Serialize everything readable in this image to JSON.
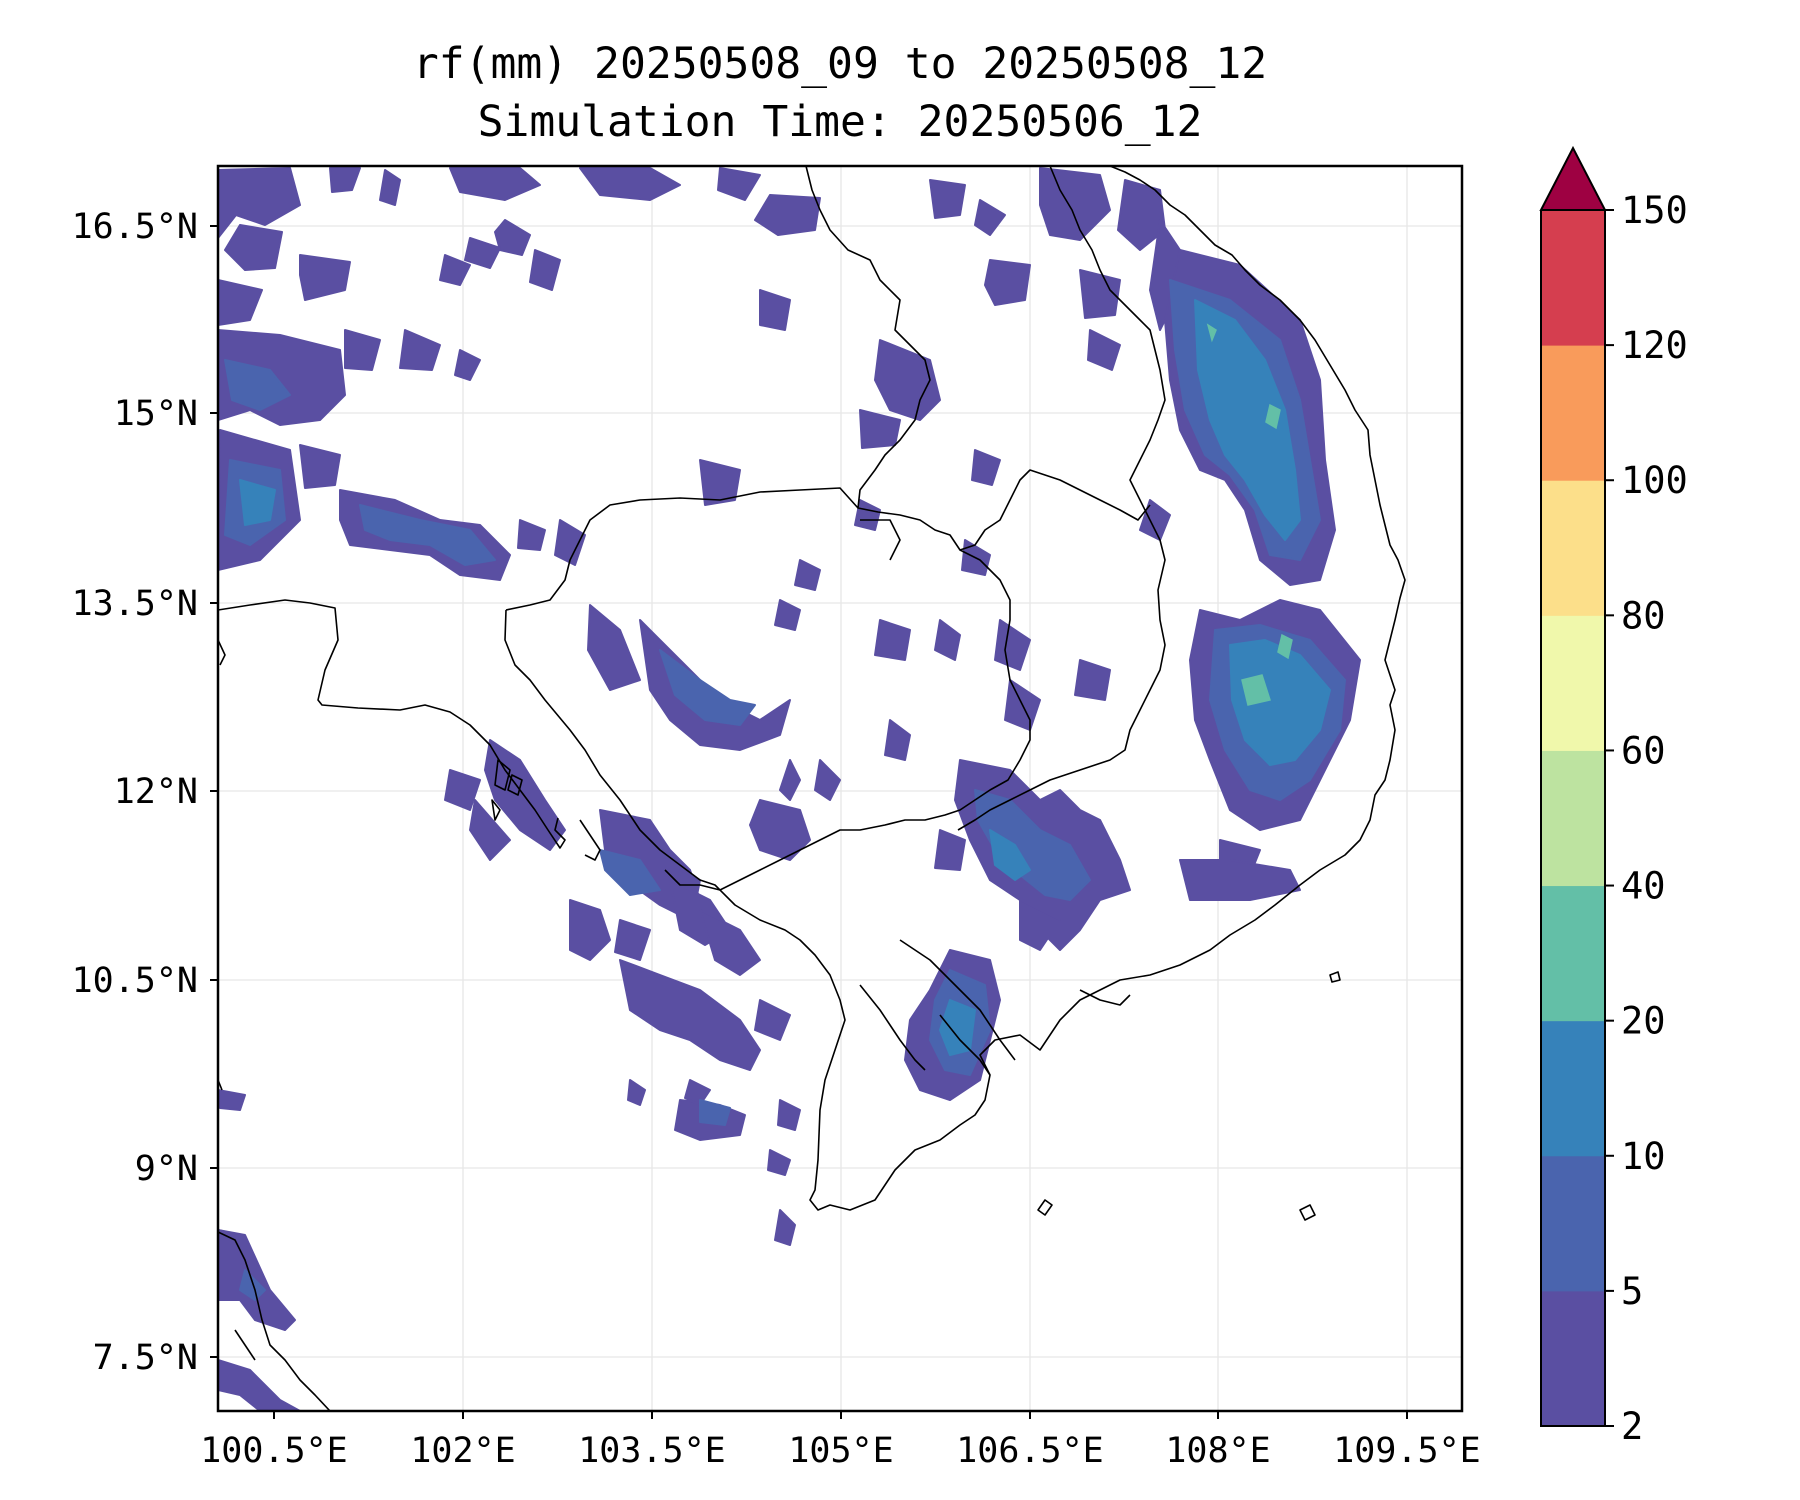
{
  "map": {
    "title_line1": "rf(mm) 20250508_09 to 20250508_12",
    "title_line2": "Simulation Time: 20250506_12",
    "x_ticks": [
      "100.5°E",
      "102°E",
      "103.5°E",
      "105°E",
      "106.5°E",
      "108°E",
      "109.5°E"
    ],
    "y_ticks": [
      "16.5°N",
      "15°N",
      "13.5°N",
      "12°N",
      "10.5°N",
      "9°N",
      "7.5°N"
    ],
    "extent": {
      "lon_min": 100.5,
      "lon_max": 109.85,
      "lat_min": 7.0,
      "lat_max": 16.95
    },
    "grid": true
  },
  "colorbar": {
    "levels": [
      "2",
      "5",
      "10",
      "20",
      "40",
      "60",
      "80",
      "100",
      "120",
      "150"
    ],
    "colors": [
      "#5a4fa2",
      "#4a64ae",
      "#3682ba",
      "#63bfa7",
      "#bde3a0",
      "#f0f8ab",
      "#fcdf8a",
      "#f99b5b",
      "#d53e4f"
    ],
    "extend_color": "#9e0142",
    "extend": "max"
  }
}
